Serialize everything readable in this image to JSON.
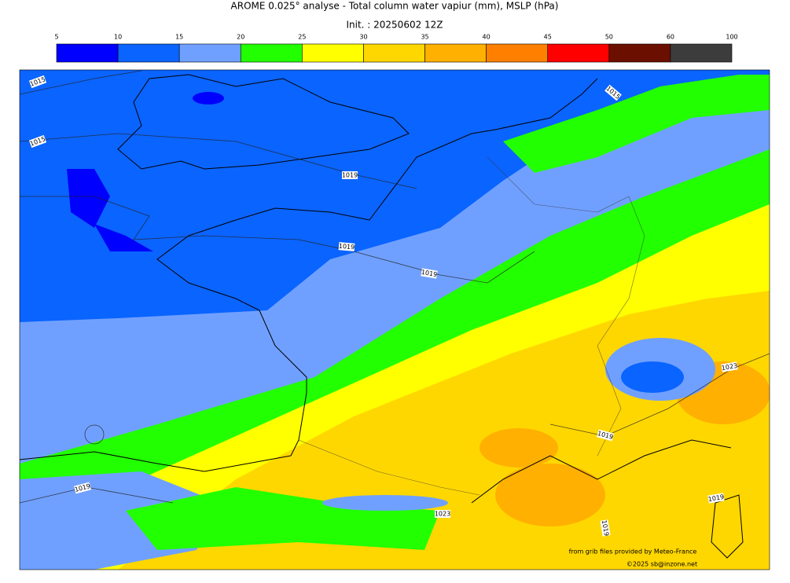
{
  "title": "AROME 0.025° analyse - Total column water vapiur (mm), MSLP (hPa)",
  "subtitle": "Init. : 20250602 12Z",
  "colorbar": {
    "levels": [
      5,
      10,
      15,
      20,
      25,
      30,
      35,
      40,
      45,
      50,
      60,
      100
    ],
    "colors": [
      "#0000ff",
      "#0a64ff",
      "#70a0ff",
      "#22ff00",
      "#ffff00",
      "#ffd700",
      "#ffb000",
      "#ff8000",
      "#ff0000",
      "#6b0f00",
      "#3c3c3c"
    ]
  },
  "contour_labels": [
    "1015",
    "1015",
    "1019",
    "1019",
    "1019",
    "1015",
    "1019",
    "1019",
    "1023",
    "1023",
    "1019",
    "1019"
  ],
  "credits": [
    "from grib files provided by Meteo-France",
    "©2025 sb@inzone.net"
  ]
}
